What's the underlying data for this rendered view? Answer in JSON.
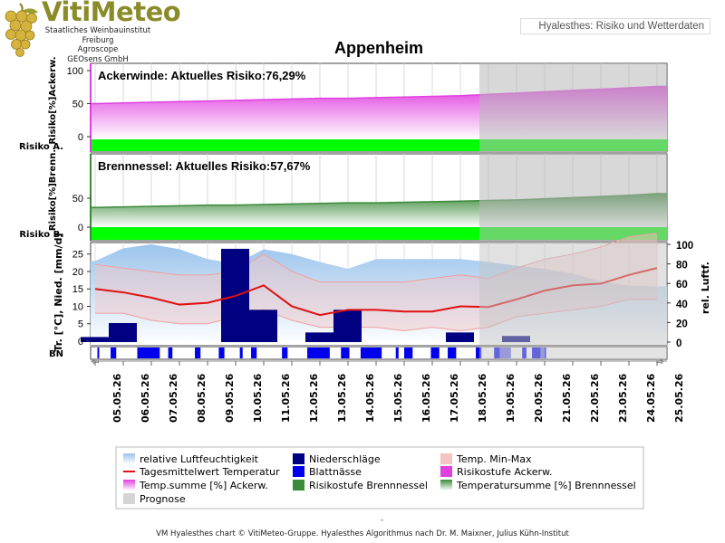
{
  "logo": {
    "name": "VitiMeteo",
    "line1": "Staatliches Weinbauinstitut Freiburg",
    "line2": "Agroscope",
    "line3": "GEOsens GmbH"
  },
  "header": {
    "label": "Hyalesthes: Risiko und Wetterdaten"
  },
  "page_title": "Appenheim",
  "footer": {
    "credit": "VM Hyalesthes chart © VitiMeteo-Gruppe. Hyalesthes Algorithmus nach Dr. M. Maixner, Julius Kühn-Institut",
    "dash": "-"
  },
  "colors": {
    "ackerwinde": "#e040e0",
    "brennnessel": "#3a8a3a",
    "risk_green": "#00ff00",
    "temperature": "#e01010",
    "precip": "#000080",
    "leaf_wetness": "#0000ee",
    "humidity": "#a8ccee",
    "temp_minmax": "#f4c4c4",
    "forecast": "#d2d2d2"
  },
  "chart_data": {
    "type": "line",
    "dates": [
      "05.05.26",
      "06.05.26",
      "07.05.26",
      "08.05.26",
      "09.05.26",
      "10.05.26",
      "11.05.26",
      "12.05.26",
      "13.05.26",
      "14.05.26",
      "15.05.26",
      "16.05.26",
      "17.05.26",
      "18.05.26",
      "19.05.26",
      "20.05.26",
      "21.05.26",
      "22.05.26",
      "23.05.26",
      "24.05.26",
      "25.05.26"
    ],
    "forecast_start": "18.05.26",
    "panels": [
      {
        "id": "ackerwinde",
        "title": "Ackerwinde:",
        "current_label": "Aktuelles Risiko:76,29%",
        "ylabel": "Risiko[%]Ackerw.",
        "risk_row_label": "Risiko A.",
        "ylim": [
          0,
          100
        ],
        "yticks": [
          0,
          50,
          100
        ],
        "series": [
          {
            "name": "Temp.summe [%] Ackerw.",
            "values": [
              50,
              51,
              52,
              53,
              54,
              55,
              56,
              57,
              58,
              58,
              59,
              60,
              61,
              62,
              64,
              66,
              68,
              70,
              72,
              74,
              76
            ]
          }
        ],
        "risk_level": [
          "green",
          "green",
          "green",
          "green",
          "green",
          "green",
          "green",
          "green",
          "green",
          "green",
          "green",
          "green",
          "green",
          "green",
          "green",
          "green",
          "green",
          "green",
          "green",
          "green",
          "green"
        ]
      },
      {
        "id": "brennnessel",
        "title": "Brennnessel:",
        "current_label": "Aktuelles Risiko:57,67%",
        "ylabel": "Risiko[%]Brenn.",
        "risk_row_label": "Risiko B.",
        "ylim": [
          0,
          100
        ],
        "yticks": [
          0,
          50
        ],
        "series": [
          {
            "name": "Temperatursumme [%] Brennnessel",
            "values": [
              34,
              35,
              36,
              37,
              38,
              38,
              39,
              40,
              41,
              42,
              42,
              43,
              44,
              45,
              46,
              47,
              49,
              51,
              53,
              55,
              58
            ]
          }
        ],
        "risk_level": [
          "green",
          "green",
          "green",
          "green",
          "green",
          "green",
          "green",
          "green",
          "green",
          "green",
          "green",
          "green",
          "green",
          "green",
          "green",
          "green",
          "green",
          "green",
          "green",
          "green",
          "green"
        ]
      }
    ],
    "weather": {
      "ylabel_left": "Tr. [°C], Nied. [mm/d]",
      "ylabel_right": "rel. Luftf.",
      "ylim_left": [
        0,
        27
      ],
      "yticks_left": [
        0,
        5,
        10,
        15,
        20,
        25
      ],
      "ylim_right": [
        0,
        100
      ],
      "yticks_right": [
        0,
        20,
        40,
        60,
        80,
        100
      ],
      "bn_label": "BN",
      "humidity": [
        83,
        96,
        100,
        95,
        85,
        80,
        95,
        90,
        82,
        75,
        85,
        85,
        85,
        85,
        82,
        78,
        75,
        70,
        62,
        58,
        57
      ],
      "temp_mean": [
        15,
        14,
        12.5,
        10.5,
        11,
        13,
        16,
        10,
        7.5,
        9,
        9,
        8.5,
        8.5,
        10,
        9.8,
        12,
        14.5,
        16,
        16.5,
        19,
        21
      ],
      "temp_max": [
        22,
        21,
        20,
        19,
        19,
        20,
        25,
        20,
        17,
        17,
        17,
        17,
        18,
        19,
        18,
        21,
        23.5,
        25,
        27,
        30,
        31
      ],
      "temp_min": [
        8,
        8,
        6,
        5,
        5,
        7,
        9,
        6,
        4,
        4,
        4,
        3,
        4,
        3,
        4,
        7,
        8,
        9,
        10,
        12,
        12
      ],
      "precip": [
        1.2,
        5.2,
        0,
        0,
        0,
        26.5,
        9,
        0,
        2.5,
        9,
        0,
        0,
        0,
        2.5,
        0,
        1.5,
        0,
        0,
        0,
        0,
        0
      ],
      "leaf_wetness": [
        [
          0.08,
          0.14
        ],
        [
          0.55,
          0.75
        ],
        [
          1.5,
          2.3
        ],
        [
          2.6,
          2.75
        ],
        [
          3.55,
          3.75
        ],
        [
          4.4,
          4.6
        ],
        [
          5.15,
          5.25
        ],
        [
          5.55,
          5.75
        ],
        [
          6.65,
          6.85
        ],
        [
          7.55,
          8.35
        ],
        [
          8.75,
          9.05
        ],
        [
          9.45,
          10.2
        ],
        [
          10.7,
          10.8
        ],
        [
          11.0,
          11.3
        ],
        [
          11.95,
          12.25
        ],
        [
          12.55,
          12.85
        ],
        [
          13.55,
          13.75
        ],
        [
          14.2,
          14.55
        ],
        [
          15.2,
          15.35
        ],
        [
          15.55,
          16.05
        ]
      ],
      "forecast_leaf_wetness": [
        [
          14.4,
          14.8
        ],
        [
          15.85,
          16.0
        ]
      ]
    },
    "legend": [
      {
        "label": "relative Luftfeuchtigkeit",
        "swatch": "humidity"
      },
      {
        "label": "Niederschläge",
        "swatch": "precip"
      },
      {
        "label": "Temp. Min-Max",
        "swatch": "temp_minmax"
      },
      {
        "label": "Tagesmittelwert Temperatur",
        "swatch": "temperature"
      },
      {
        "label": "Blattnässe",
        "swatch": "leaf_wetness"
      },
      {
        "label": "Risikostufe Ackerw.",
        "swatch": "ackerwinde"
      },
      {
        "label": "Temp.summe [%] Ackerw.",
        "swatch": "ackerwinde_grad"
      },
      {
        "label": "Risikostufe Brennnessel",
        "swatch": "brennnessel"
      },
      {
        "label": "Temperatursumme [%] Brennnessel",
        "swatch": "brennnessel_grad"
      },
      {
        "label": "Prognose",
        "swatch": "forecast"
      }
    ]
  }
}
